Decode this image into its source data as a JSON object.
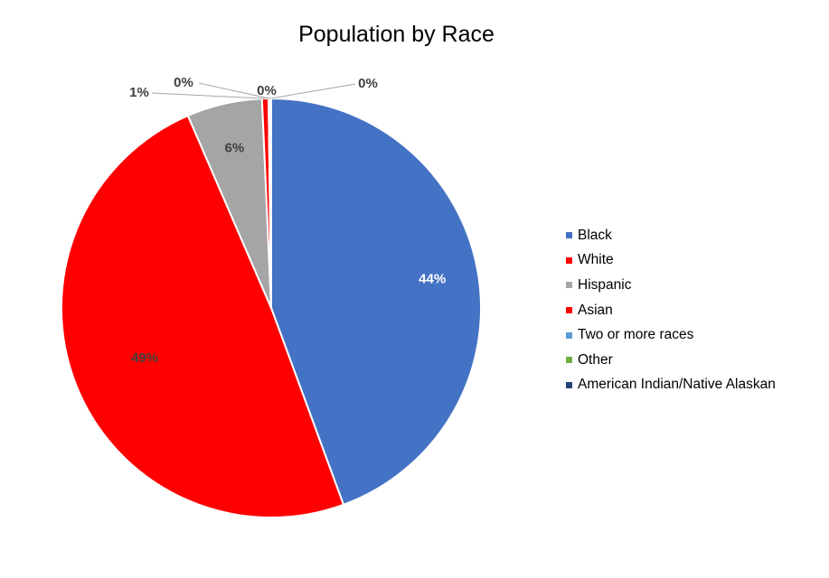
{
  "chart_data": {
    "type": "pie",
    "title": "Population by Race",
    "categories": [
      "Black",
      "White",
      "Hispanic",
      "Asian",
      "Two or more races",
      "Other",
      "American Indian/Native Alaskan"
    ],
    "values": [
      44.4,
      49.1,
      5.8,
      0.5,
      0.1,
      0.05,
      0.05
    ],
    "data_labels": [
      "44%",
      "49%",
      "6%",
      "1%",
      "0%",
      "0%",
      "0%"
    ],
    "colors": [
      "#4472C4",
      "#FF0000",
      "#A5A5A5",
      "#FF0000",
      "#5B9BD5",
      "#70AD47",
      "#264478"
    ],
    "start_angle_deg": 0,
    "direction": "clockwise",
    "legend_position": "right"
  }
}
